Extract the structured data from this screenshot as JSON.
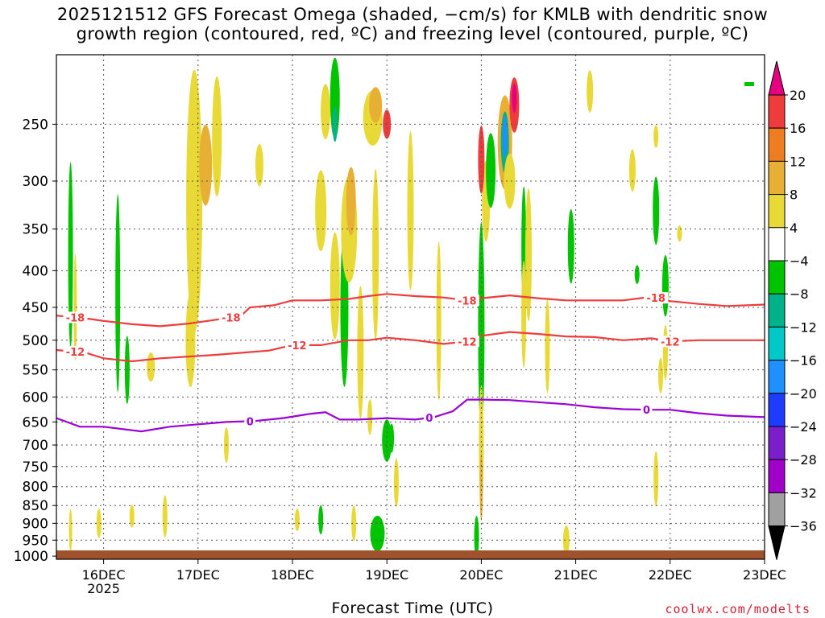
{
  "title": {
    "line1": "2025121512 GFS Forecast Omega (shaded, −cm/s) for KMLB with dendritic snow",
    "line2": "growth region (contoured, red, ºC) and freezing level (contoured, purple, ºC)"
  },
  "x_axis_title": "Forecast Time (UTC)",
  "credit": "coolwx.com/modelts",
  "chart_data": {
    "type": "heatmap",
    "title": "2025121512 GFS Forecast Omega (shaded, −cm/s) for KMLB with dendritic snow growth region (contoured, red, ºC) and freezing level (contoured, purple, ºC)",
    "xlabel": "Forecast Time (UTC)",
    "ylabel": "",
    "y_scale": "log-pressure",
    "y_inverted": true,
    "x_ticks": [
      {
        "label": "16DEC",
        "sub": "2025",
        "day": 16
      },
      {
        "label": "17DEC",
        "sub": "",
        "day": 17
      },
      {
        "label": "18DEC",
        "sub": "",
        "day": 18
      },
      {
        "label": "19DEC",
        "sub": "",
        "day": 19
      },
      {
        "label": "20DEC",
        "sub": "",
        "day": 20
      },
      {
        "label": "21DEC",
        "sub": "",
        "day": 21
      },
      {
        "label": "22DEC",
        "sub": "",
        "day": 22
      },
      {
        "label": "23DEC",
        "sub": "",
        "day": 23
      }
    ],
    "xlim": [
      15.5,
      23.0
    ],
    "y_ticks": [
      250,
      300,
      350,
      400,
      450,
      500,
      550,
      600,
      650,
      700,
      750,
      800,
      850,
      900,
      950,
      1000
    ],
    "ylim": [
      200,
      1010
    ],
    "grid": true,
    "colorbar": {
      "labels": [
        "20",
        "16",
        "12",
        "8",
        "4",
        "−4",
        "−8",
        "−12",
        "−16",
        "−20",
        "−24",
        "−28",
        "−32",
        "−36"
      ],
      "colors": [
        "#e6007f",
        "#ee3b3b",
        "#ee7d21",
        "#e7b034",
        "#e9d936",
        "#ffffff",
        "#00c400",
        "#00b28a",
        "#00c8c8",
        "#1e90ff",
        "#1e3cff",
        "#7a1ecc",
        "#a000c8",
        "#a0a0a0",
        "#000000"
      ]
    },
    "ground_color": "#a0522d",
    "contours": [
      {
        "name": "-18",
        "color": "#ee3b3b",
        "label_days": [
          15.7,
          17.35,
          19.85,
          21.85
        ],
        "points": [
          [
            15.5,
            462
          ],
          [
            15.8,
            466
          ],
          [
            16.0,
            470
          ],
          [
            16.3,
            475
          ],
          [
            16.6,
            478
          ],
          [
            16.9,
            474
          ],
          [
            17.2,
            468
          ],
          [
            17.45,
            463
          ],
          [
            17.55,
            450
          ],
          [
            17.8,
            447
          ],
          [
            18.0,
            440
          ],
          [
            18.3,
            440
          ],
          [
            18.6,
            438
          ],
          [
            18.8,
            434
          ],
          [
            19.0,
            431
          ],
          [
            19.3,
            434
          ],
          [
            19.6,
            436
          ],
          [
            19.85,
            440
          ],
          [
            20.0,
            437
          ],
          [
            20.3,
            433
          ],
          [
            20.6,
            437
          ],
          [
            20.9,
            440
          ],
          [
            21.2,
            440
          ],
          [
            21.5,
            440
          ],
          [
            21.8,
            435
          ],
          [
            22.0,
            441
          ],
          [
            22.3,
            445
          ],
          [
            22.6,
            448
          ],
          [
            23.0,
            446
          ]
        ]
      },
      {
        "name": "-12",
        "color": "#ee3b3b",
        "label_days": [
          15.7,
          18.05,
          19.85,
          22.0
        ],
        "points": [
          [
            15.5,
            516
          ],
          [
            15.8,
            520
          ],
          [
            16.0,
            530
          ],
          [
            16.3,
            535
          ],
          [
            16.6,
            530
          ],
          [
            16.9,
            527
          ],
          [
            17.2,
            524
          ],
          [
            17.5,
            520
          ],
          [
            17.75,
            517
          ],
          [
            18.0,
            508
          ],
          [
            18.3,
            508
          ],
          [
            18.6,
            500
          ],
          [
            18.8,
            500
          ],
          [
            19.0,
            496
          ],
          [
            19.3,
            500
          ],
          [
            19.6,
            506
          ],
          [
            19.85,
            502
          ],
          [
            20.0,
            493
          ],
          [
            20.3,
            487
          ],
          [
            20.6,
            490
          ],
          [
            20.9,
            494
          ],
          [
            21.2,
            495
          ],
          [
            21.5,
            500
          ],
          [
            21.8,
            497
          ],
          [
            22.0,
            502
          ],
          [
            22.3,
            500
          ],
          [
            22.6,
            500
          ],
          [
            23.0,
            500
          ]
        ]
      },
      {
        "name": "0",
        "color": "#9b00d6",
        "label_days": [
          17.55,
          19.45,
          21.75
        ],
        "points": [
          [
            15.5,
            642
          ],
          [
            15.75,
            660
          ],
          [
            16.0,
            660
          ],
          [
            16.4,
            670
          ],
          [
            16.7,
            660
          ],
          [
            17.0,
            655
          ],
          [
            17.3,
            650
          ],
          [
            17.6,
            648
          ],
          [
            17.9,
            642
          ],
          [
            18.2,
            633
          ],
          [
            18.35,
            630
          ],
          [
            18.5,
            645
          ],
          [
            18.7,
            645
          ],
          [
            19.0,
            642
          ],
          [
            19.3,
            645
          ],
          [
            19.5,
            640
          ],
          [
            19.7,
            628
          ],
          [
            19.85,
            605
          ],
          [
            20.0,
            605
          ],
          [
            20.3,
            606
          ],
          [
            20.6,
            610
          ],
          [
            20.9,
            614
          ],
          [
            21.2,
            620
          ],
          [
            21.5,
            624
          ],
          [
            21.8,
            625
          ],
          [
            22.0,
            625
          ],
          [
            22.3,
            632
          ],
          [
            22.6,
            637
          ],
          [
            23.0,
            640
          ]
        ]
      }
    ]
  }
}
